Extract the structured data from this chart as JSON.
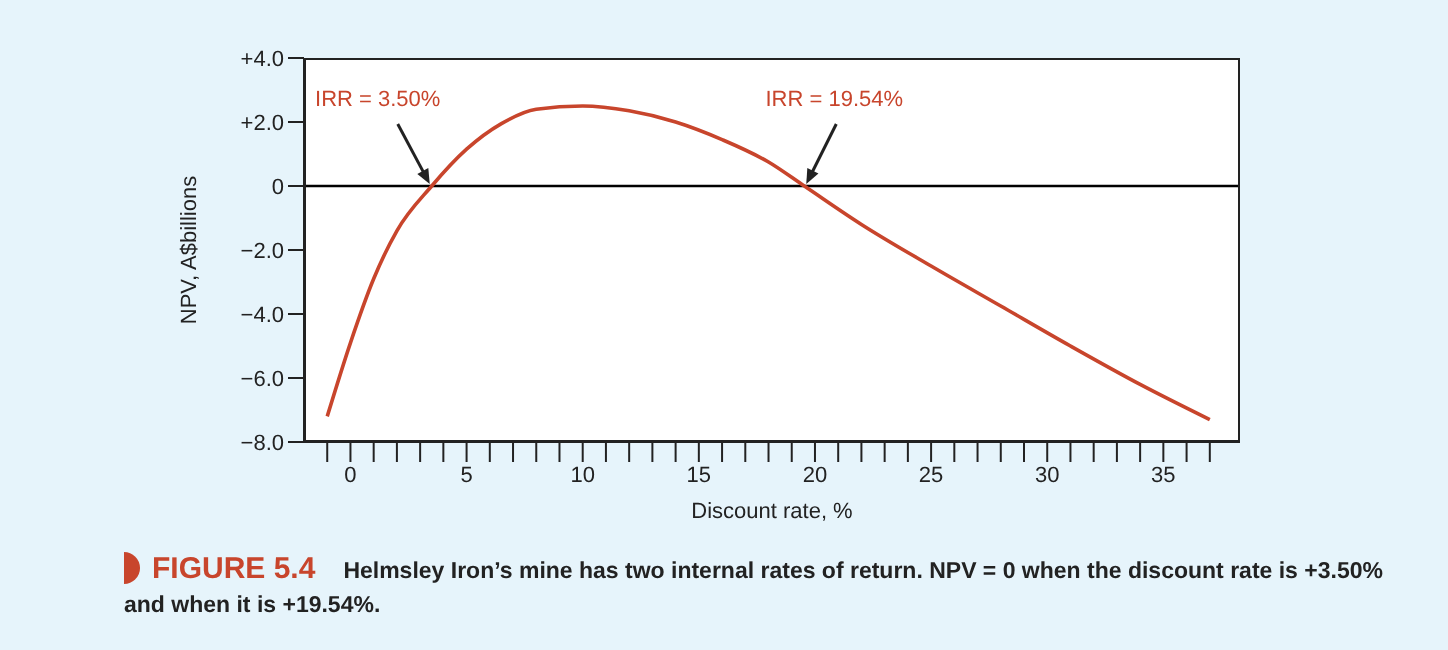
{
  "chart_data": {
    "type": "line",
    "xlabel": "Discount rate, %",
    "ylabel": "NPV, A$billions",
    "x": [
      -1,
      0,
      1,
      2,
      3.5,
      5,
      6.5,
      8,
      10,
      12,
      14,
      16,
      18,
      19.54,
      22,
      25,
      28,
      31,
      34,
      37
    ],
    "series": [
      {
        "color": "#c8452c",
        "values": [
          -7.2,
          -4.9,
          -2.9,
          -1.4,
          0,
          1.15,
          1.95,
          2.4,
          2.5,
          2.35,
          2.0,
          1.45,
          0.75,
          0,
          -1.2,
          -2.5,
          -3.75,
          -5.0,
          -6.2,
          -7.3
        ]
      }
    ],
    "xlim": [
      -2,
      38.3
    ],
    "xticks": [
      {
        "value": -1,
        "label": null
      },
      0,
      {
        "value": 1,
        "label": null
      },
      {
        "value": 2,
        "label": null
      },
      {
        "value": 3,
        "label": null
      },
      {
        "value": 4,
        "label": null
      },
      5,
      {
        "value": 6,
        "label": null
      },
      {
        "value": 7,
        "label": null
      },
      {
        "value": 8,
        "label": null
      },
      {
        "value": 9,
        "label": null
      },
      10,
      {
        "value": 11,
        "label": null
      },
      {
        "value": 12,
        "label": null
      },
      {
        "value": 13,
        "label": null
      },
      {
        "value": 14,
        "label": null
      },
      15,
      {
        "value": 16,
        "label": null
      },
      {
        "value": 17,
        "label": null
      },
      {
        "value": 18,
        "label": null
      },
      {
        "value": 19,
        "label": null
      },
      20,
      {
        "value": 21,
        "label": null
      },
      {
        "value": 22,
        "label": null
      },
      {
        "value": 23,
        "label": null
      },
      {
        "value": 24,
        "label": null
      },
      25,
      {
        "value": 26,
        "label": null
      },
      {
        "value": 27,
        "label": null
      },
      {
        "value": 28,
        "label": null
      },
      {
        "value": 29,
        "label": null
      },
      30,
      {
        "value": 31,
        "label": null
      },
      {
        "value": 32,
        "label": null
      },
      {
        "value": 33,
        "label": null
      },
      {
        "value": 34,
        "label": null
      },
      35,
      {
        "value": 36,
        "label": null
      },
      {
        "value": 37,
        "label": null
      }
    ],
    "ylim": [
      -8,
      4
    ],
    "yticks": [
      {
        "value": 4,
        "label": "+4.0"
      },
      {
        "value": 2,
        "label": "+2.0"
      },
      0,
      {
        "value": -2,
        "label": "−2.0"
      },
      {
        "value": -4,
        "label": "−4.0"
      },
      {
        "value": -6,
        "label": "−6.0"
      },
      {
        "value": -8,
        "label": "−8.0"
      }
    ],
    "ref_lines": [
      {
        "axis": "y",
        "value": 0,
        "color": "#000000"
      }
    ],
    "annotations": [
      {
        "text": "IRR = 3.50%",
        "x": 3.5,
        "y": 0
      },
      {
        "text": "IRR = 19.54%",
        "x": 19.54,
        "y": 0
      },
      "FIGURE 5.4",
      "Helmsley Iron’s mine has two internal rates of return. NPV = 0 when the discount rate is +3.50% and when it is +19.54%."
    ],
    "marker": "none",
    "line_style": "solid"
  }
}
